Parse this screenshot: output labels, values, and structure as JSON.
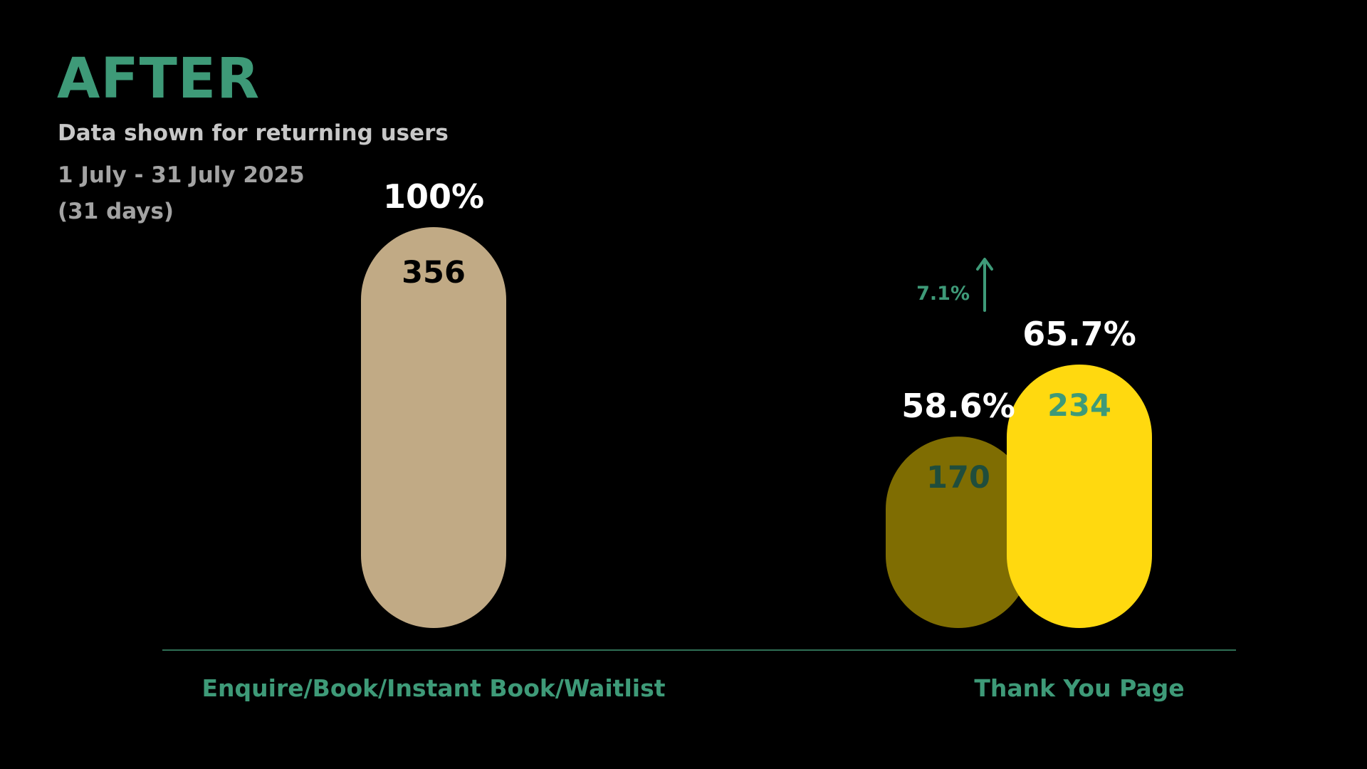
{
  "header": {
    "title": "AFTER",
    "subtitle": "Data shown for returning users",
    "date_range": "1 July - 31 July 2025",
    "duration": "(31 days)"
  },
  "colors": {
    "background": "#000000",
    "title": "#3e9a78",
    "subtitle": "#c7c7c7",
    "date": "#a3a3a3",
    "axis": "#2f6f55",
    "category_label": "#3e9a78",
    "percent_label": "#ffffff",
    "change_indicator": "#3e9a78"
  },
  "chart_data": {
    "type": "bar",
    "categories": [
      "Enquire/Book/Instant Book/Waitlist",
      "Thank You Page"
    ],
    "bars": [
      {
        "category": "Enquire/Book/Instant Book/Waitlist",
        "value": 356,
        "value_label": "356",
        "percent_label": "100%",
        "fill": "#c1aa85",
        "value_color": "#000000"
      },
      {
        "category": "Thank You Page",
        "value": 170,
        "value_label": "170",
        "percent_label": "58.6%",
        "fill": "#7f6d02",
        "value_color": "#1f4d3c"
      },
      {
        "category": "Thank You Page",
        "value": 234,
        "value_label": "234",
        "percent_label": "65.7%",
        "fill": "#ffd90f",
        "value_color": "#3e9a78"
      }
    ],
    "annotation": {
      "text": "7.1%",
      "direction": "up",
      "icon": "arrow-up-icon"
    },
    "ylim": [
      0,
      356
    ],
    "grid": false,
    "legend": "none"
  }
}
